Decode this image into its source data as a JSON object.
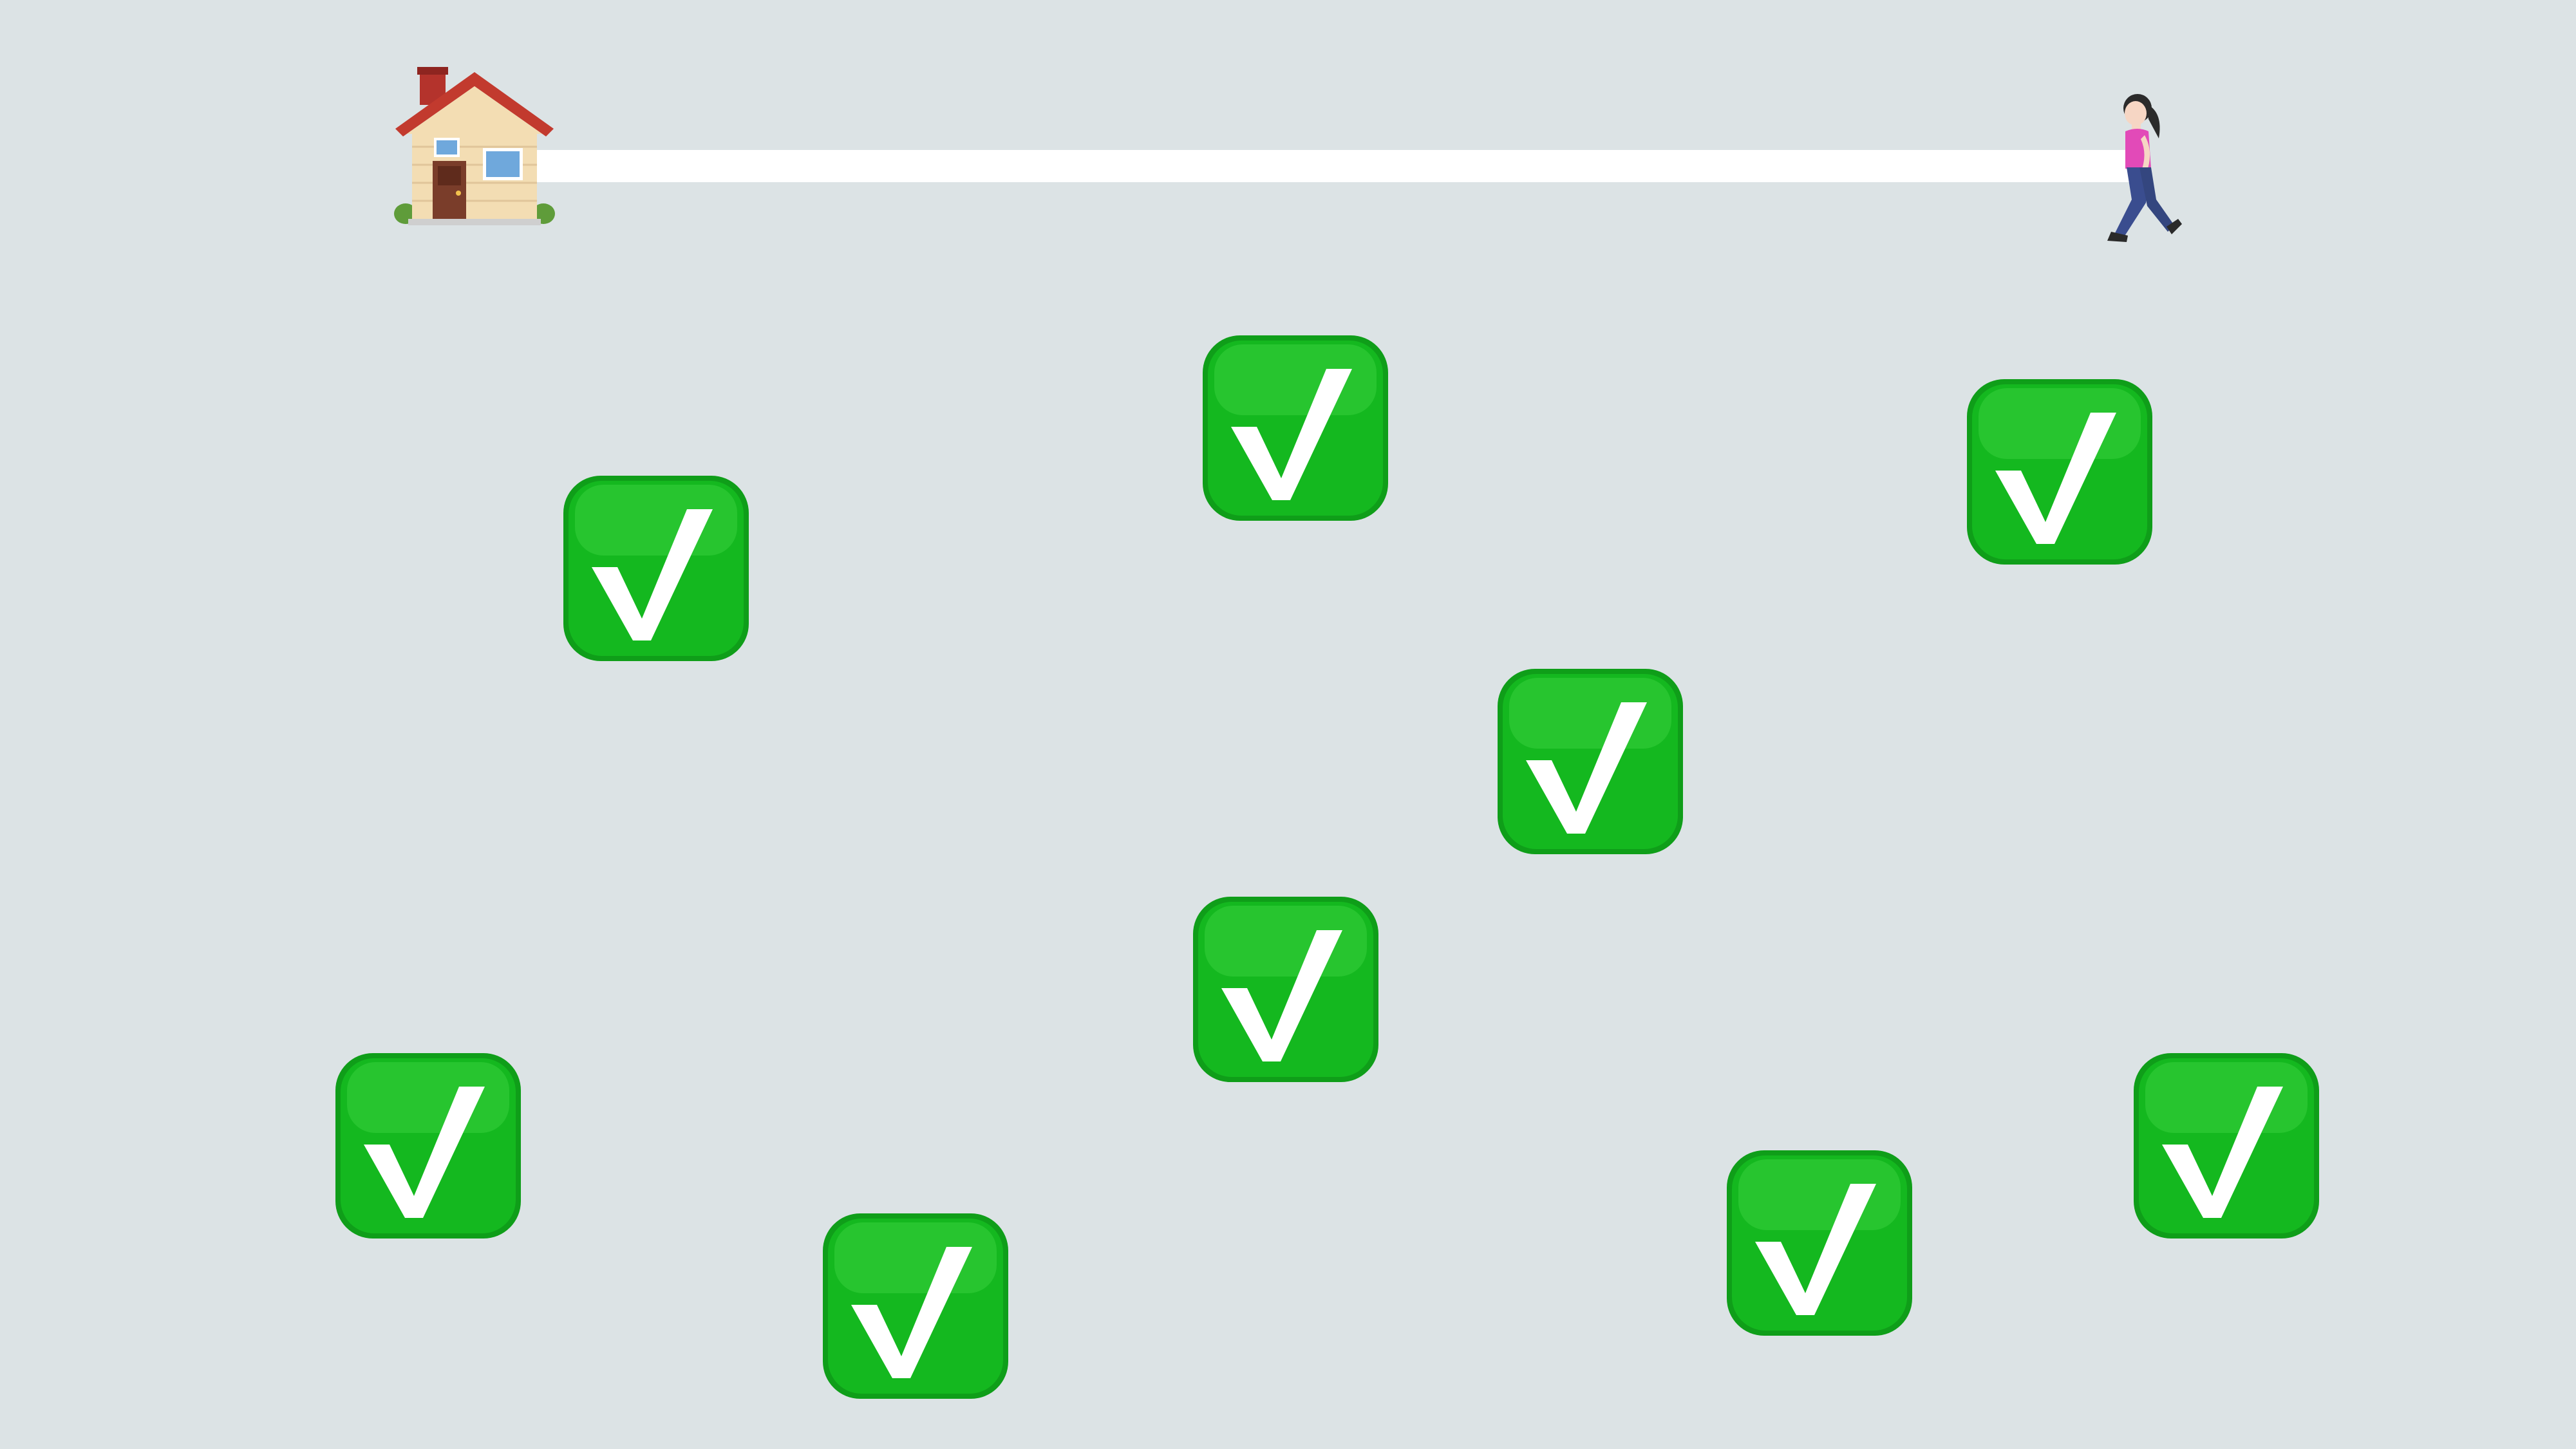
{
  "scene": {
    "background": "#dce3e5",
    "track_color": "#ffffff",
    "start_icon": "house-icon",
    "player_icon": "person-walking-icon",
    "player_progress": 1.0
  },
  "targets": {
    "icon": "check-mark-button-icon",
    "color": "#14b81f",
    "count": 9,
    "all_checked": true
  }
}
